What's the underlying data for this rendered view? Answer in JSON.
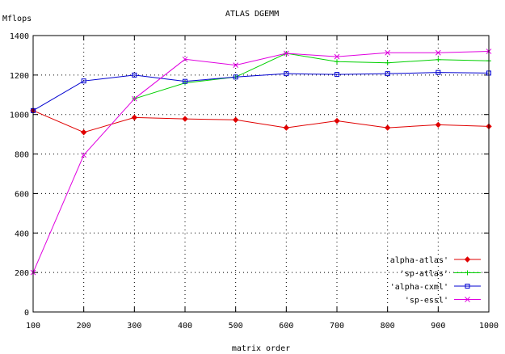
{
  "chart_data": {
    "type": "line",
    "title": "ATLAS DGEMM",
    "xlabel": "matrix order",
    "ylabel": "Mflops",
    "xlim": [
      100,
      1000
    ],
    "ylim": [
      0,
      1400
    ],
    "x": [
      100,
      200,
      300,
      400,
      500,
      600,
      700,
      800,
      900,
      1000
    ],
    "xticks": [
      "100",
      "200",
      "300",
      "400",
      "500",
      "600",
      "700",
      "800",
      "900",
      "1000"
    ],
    "yticks": [
      "0",
      "200",
      "400",
      "600",
      "800",
      "1000",
      "1200",
      "1400"
    ],
    "grid": true,
    "legend_position": "bottom-right",
    "series": [
      {
        "name": "'alpha-atlas'",
        "color": "#e00000",
        "marker": "diamond",
        "values": [
          1020,
          910,
          985,
          978,
          973,
          933,
          968,
          933,
          948,
          940
        ]
      },
      {
        "name": "'sp-atlas'",
        "color": "#00d000",
        "marker": "plus",
        "values": [
          null,
          null,
          1080,
          1160,
          1190,
          1310,
          1268,
          1262,
          1278,
          1272
        ]
      },
      {
        "name": "'alpha-cxml'",
        "color": "#0000d0",
        "marker": "square",
        "values": [
          1020,
          1170,
          1200,
          1168,
          1190,
          1207,
          1203,
          1207,
          1213,
          1210
        ]
      },
      {
        "name": "'sp-essl'",
        "color": "#e000e0",
        "marker": "cross",
        "values": [
          200,
          795,
          1080,
          1280,
          1250,
          1310,
          1293,
          1313,
          1313,
          1320
        ]
      }
    ]
  }
}
